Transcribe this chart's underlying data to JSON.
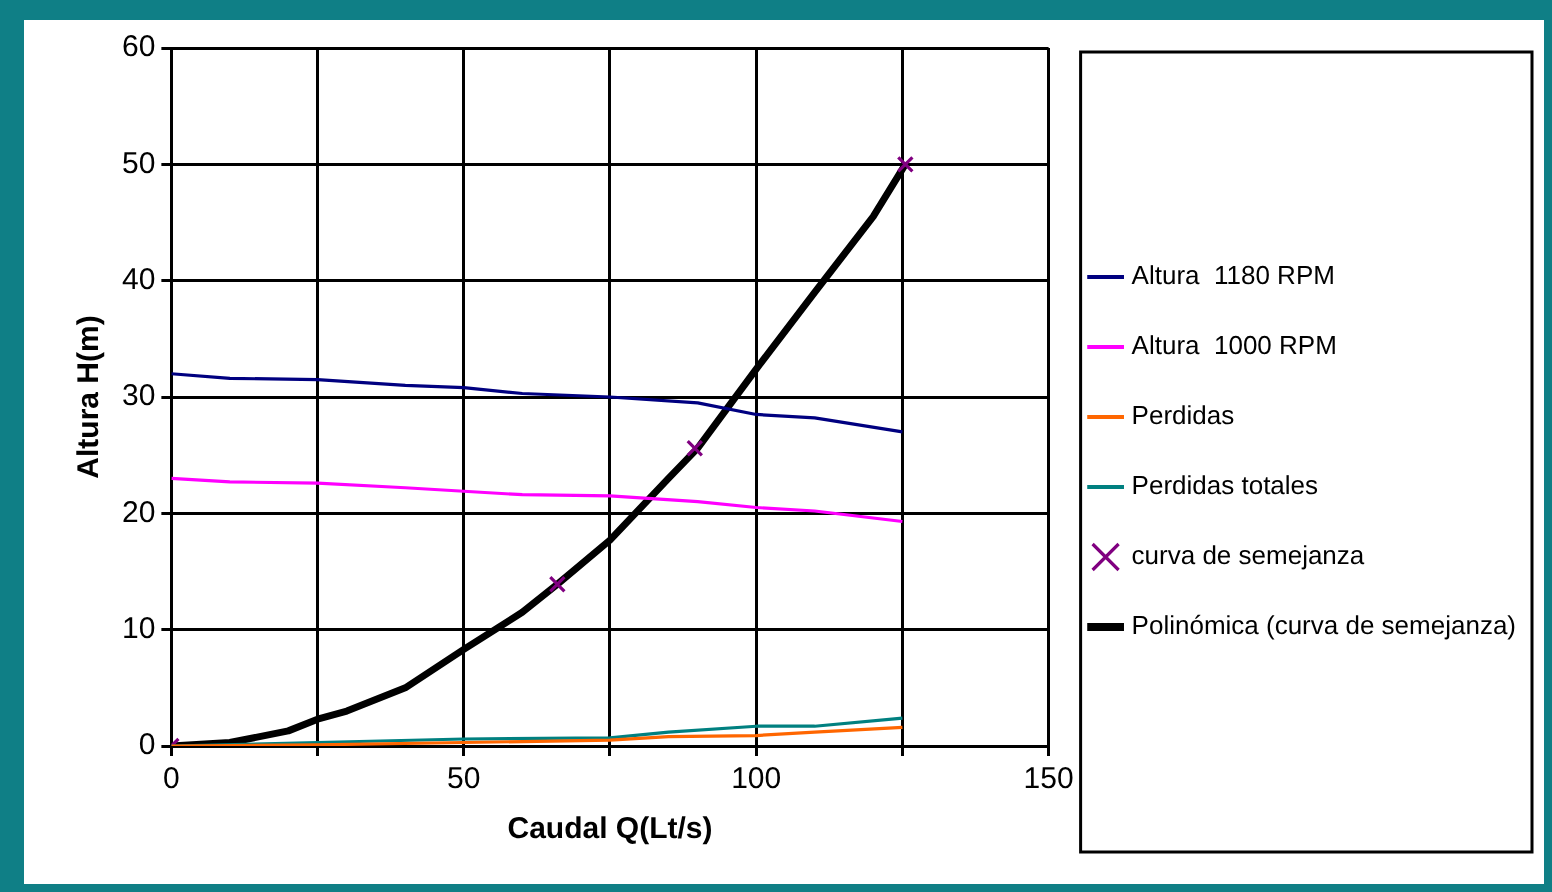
{
  "chart_data": {
    "type": "line",
    "xlabel": "Caudal Q(Lt/s)",
    "ylabel": "Altura H(m)",
    "xlim": [
      0,
      150
    ],
    "ylim": [
      0,
      60
    ],
    "xticks": [
      0,
      {
        "value": 25,
        "label": null
      },
      50,
      {
        "value": 75,
        "label": null
      },
      100,
      {
        "value": 125,
        "label": null
      },
      150
    ],
    "yticks": [
      0,
      10,
      20,
      30,
      40,
      50,
      60
    ],
    "grid": true,
    "legend": "right",
    "marker": "none",
    "line_style": "solid",
    "series": [
      {
        "name": "Altura  1180 RPM",
        "color": "#000080",
        "x": [
          0,
          10,
          25,
          40,
          50,
          60,
          75,
          90,
          100,
          110,
          125
        ],
        "values": [
          32,
          31.6,
          31.5,
          31,
          30.8,
          30.3,
          30,
          29.5,
          28.5,
          28.2,
          27
        ]
      },
      {
        "name": "Altura  1000 RPM",
        "color": "#ff00ff",
        "x": [
          0,
          10,
          25,
          40,
          50,
          60,
          75,
          90,
          100,
          110,
          125
        ],
        "values": [
          23,
          22.7,
          22.6,
          22.2,
          21.9,
          21.6,
          21.5,
          21,
          20.5,
          20.2,
          19.3
        ]
      },
      {
        "name": "Perdidas",
        "color": "#ff6600",
        "x": [
          0,
          25,
          50,
          75,
          85,
          100,
          110,
          125
        ],
        "values": [
          0,
          0.1,
          0.3,
          0.5,
          0.8,
          0.9,
          1.2,
          1.6
        ]
      },
      {
        "name": "Perdidas totales",
        "color": "#008080",
        "x": [
          0,
          25,
          50,
          75,
          85,
          100,
          110,
          125
        ],
        "values": [
          0,
          0.3,
          0.6,
          0.7,
          1.2,
          1.7,
          1.7,
          2.4
        ]
      },
      {
        "name": "curva de semejanza",
        "type": "scatter",
        "marker": "cross",
        "color": "#800080",
        "x": [
          0,
          66,
          89.5,
          125.5
        ],
        "values": [
          0,
          13.9,
          25.6,
          50
        ]
      },
      {
        "name": "Polinómica (curva de semejanza)",
        "color": "#000000",
        "x": [
          0,
          10,
          20,
          25,
          30,
          40,
          50,
          60,
          66,
          75,
          85,
          90,
          100,
          110,
          120,
          125.5
        ],
        "values": [
          0,
          0.3,
          1.3,
          2.3,
          3,
          5,
          8.3,
          11.5,
          13.9,
          17.7,
          23,
          25.6,
          32.4,
          39,
          45.5,
          50
        ]
      }
    ]
  }
}
